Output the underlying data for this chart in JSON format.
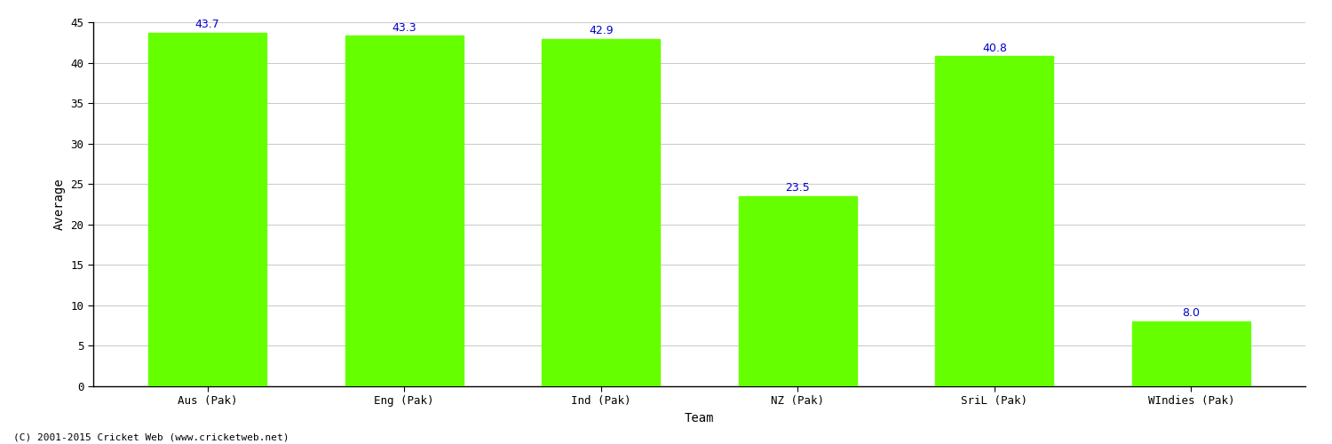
{
  "categories": [
    "Aus (Pak)",
    "Eng (Pak)",
    "Ind (Pak)",
    "NZ (Pak)",
    "SriL (Pak)",
    "WIndies (Pak)"
  ],
  "values": [
    43.7,
    43.3,
    42.9,
    23.5,
    40.8,
    8.0
  ],
  "bar_color": "#66ff00",
  "bar_edge_color": "#66ff00",
  "label_color": "#0000cc",
  "xlabel": "Team",
  "ylabel": "Average",
  "ylim": [
    0,
    45
  ],
  "yticks": [
    0,
    5,
    10,
    15,
    20,
    25,
    30,
    35,
    40,
    45
  ],
  "grid_color": "#cccccc",
  "bg_color": "#ffffff",
  "footer": "(C) 2001-2015 Cricket Web (www.cricketweb.net)",
  "axis_label_fontsize": 10,
  "tick_fontsize": 9,
  "value_label_fontsize": 9,
  "footer_fontsize": 8,
  "bar_width": 0.6
}
